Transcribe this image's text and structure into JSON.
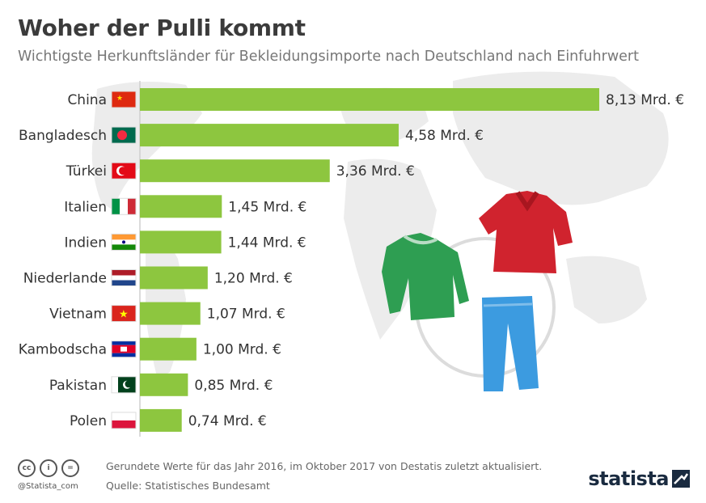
{
  "header": {
    "title": "Woher der Pulli kommt",
    "subtitle": "Wichtigste Herkunftsländer für Bekleidungsimporte nach Deutschland nach Einfuhrwert"
  },
  "chart_data": {
    "type": "bar",
    "orientation": "horizontal",
    "title": "Woher der Pulli kommt",
    "subtitle": "Wichtigste Herkunftsländer für Bekleidungsimporte nach Deutschland nach Einfuhrwert",
    "categories": [
      "China",
      "Bangladesch",
      "Türkei",
      "Italien",
      "Indien",
      "Niederlande",
      "Vietnam",
      "Kambodscha",
      "Pakistan",
      "Polen"
    ],
    "values": [
      8.13,
      4.58,
      3.36,
      1.45,
      1.44,
      1.2,
      1.07,
      1.0,
      0.85,
      0.74
    ],
    "value_labels": [
      "8,13 Mrd. €",
      "4,58 Mrd. €",
      "3,36 Mrd. €",
      "1,45 Mrd. €",
      "1,44 Mrd. €",
      "1,20 Mrd. €",
      "1,07 Mrd. €",
      "1,00 Mrd. €",
      "0,85 Mrd. €",
      "0,74 Mrd. €"
    ],
    "unit": "Mrd. €",
    "xlim": [
      0,
      8.13
    ],
    "grid": false,
    "bar_color": "#8dc63f"
  },
  "footer": {
    "note": "Gerundete Werte für das Jahr 2016, im Oktober 2017 von Destatis zuletzt aktualisiert.",
    "source": "Quelle: Statistisches Bundesamt",
    "handle": "@Statista_com",
    "brand": "statista",
    "license_icons": [
      "cc",
      "i",
      "="
    ]
  }
}
